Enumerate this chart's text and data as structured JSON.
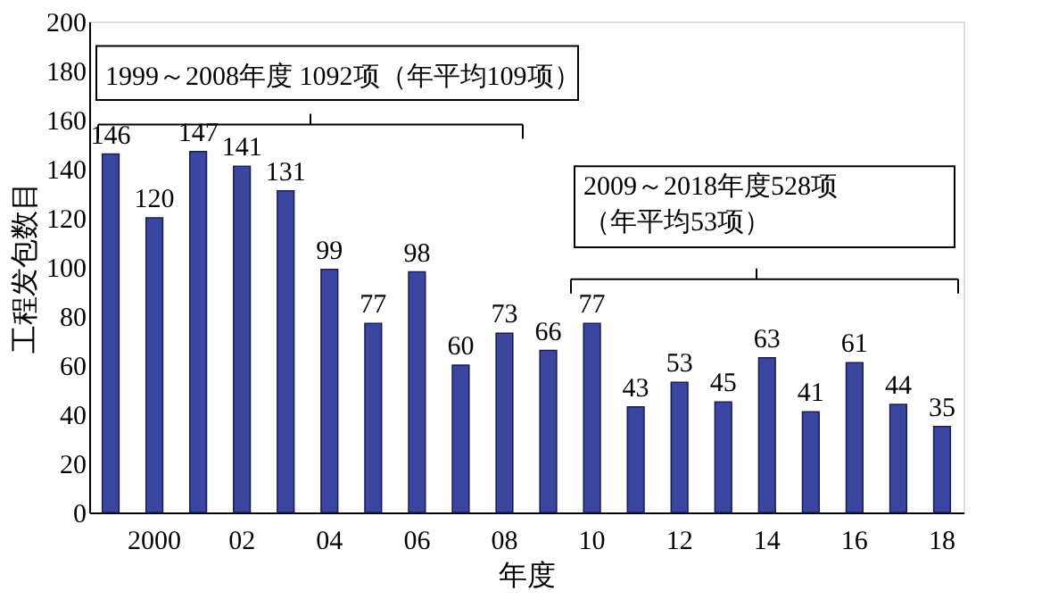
{
  "chart_data": {
    "type": "bar",
    "xlabel": "年度",
    "ylabel": "工程发包数目",
    "categories": [
      null,
      "2000",
      null,
      "02",
      null,
      "04",
      null,
      "06",
      null,
      "08",
      null,
      "10",
      null,
      "12",
      null,
      "14",
      null,
      "16",
      null,
      "18"
    ],
    "series": [
      {
        "color": "#3b46a0",
        "values": [
          146,
          120,
          147,
          141,
          131,
          99,
          77,
          98,
          60,
          73,
          66,
          77,
          43,
          53,
          45,
          63,
          41,
          61,
          44,
          35
        ]
      }
    ],
    "ylim": [
      0,
      200
    ],
    "yticks": [
      0,
      20,
      40,
      60,
      80,
      100,
      120,
      140,
      160,
      180,
      200
    ],
    "data_labels": true,
    "grid": false,
    "annotations": [
      "1999～2008年度 1092项（年平均109项）",
      "2009～2018年度528项（年平均53项）"
    ]
  }
}
